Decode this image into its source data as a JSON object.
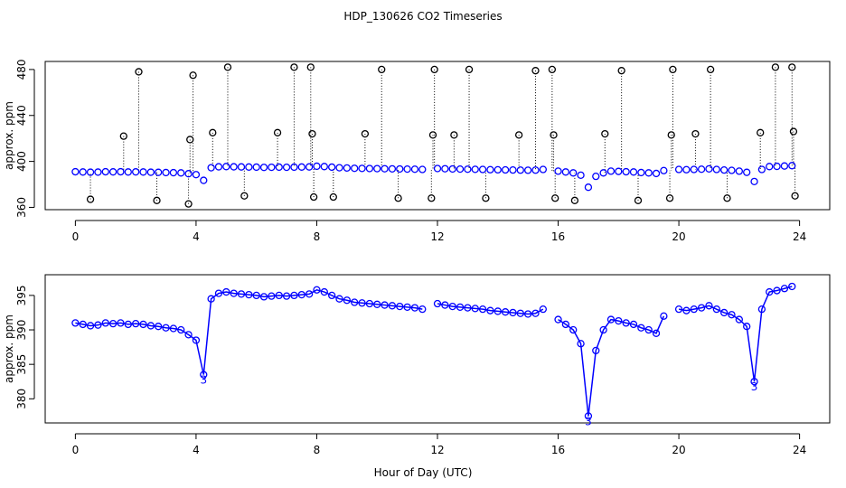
{
  "chart_data": [
    {
      "type": "scatter",
      "title": "HDP_130626  CO2 Timeseries",
      "y_label": "approx. ppm",
      "xlim": [
        -1,
        25
      ],
      "ylim": [
        358,
        487
      ],
      "xticks": [
        0,
        4,
        8,
        12,
        16,
        20,
        24
      ],
      "yticks": [
        360,
        400,
        440,
        480
      ],
      "series": [
        {
          "color": "#0000ff",
          "x": [
            0,
            0.25,
            0.5,
            0.75,
            1,
            1.25,
            1.5,
            1.75,
            2,
            2.25,
            2.5,
            2.75,
            3,
            3.25,
            3.5,
            3.75,
            4,
            4.25,
            4.5,
            4.75,
            5,
            5.25,
            5.5,
            5.75,
            6,
            6.25,
            6.5,
            6.75,
            7,
            7.25,
            7.5,
            7.75,
            8,
            8.25,
            8.5,
            8.75,
            9,
            9.25,
            9.5,
            9.75,
            10,
            10.25,
            10.5,
            10.75,
            11,
            11.25,
            11.5,
            11.75,
            12,
            12.25,
            12.5,
            12.75,
            13,
            13.25,
            13.5,
            13.75,
            14,
            14.25,
            14.5,
            14.75,
            15,
            15.25,
            15.5,
            15.75,
            16,
            16.25,
            16.5,
            16.75,
            17,
            17.25,
            17.5,
            17.75,
            18,
            18.25,
            18.5,
            18.75,
            19,
            19.25,
            19.5,
            19.75,
            20,
            20.25,
            20.5,
            20.75,
            21,
            21.25,
            21.5,
            21.75,
            22,
            22.25,
            22.5,
            22.75,
            23,
            23.25,
            23.5,
            23.75
          ],
          "values": [
            391,
            390.8,
            390.6,
            390.7,
            391,
            390.9,
            391,
            390.8,
            390.9,
            390.8,
            390.6,
            390.5,
            390.3,
            390.2,
            390,
            389.3,
            388.5,
            383.5,
            394.5,
            395.3,
            395.5,
            395.3,
            395.2,
            395.1,
            395,
            394.8,
            394.9,
            395,
            394.9,
            395,
            395.1,
            395.2,
            395.8,
            395.5,
            395,
            394.5,
            394.3,
            394,
            393.9,
            393.8,
            393.7,
            393.6,
            393.5,
            393.4,
            393.3,
            393.2,
            393,
            null,
            393.8,
            393.6,
            393.4,
            393.3,
            393.2,
            393.1,
            393,
            392.8,
            392.7,
            392.6,
            392.5,
            392.4,
            392.3,
            392.4,
            393,
            null,
            391.5,
            390.8,
            390,
            388,
            377.5,
            387,
            390,
            391.5,
            391.3,
            391,
            390.8,
            390.3,
            390,
            389.5,
            392,
            null,
            393,
            392.8,
            393,
            393.2,
            393.5,
            393,
            392.5,
            392.2,
            391.5,
            390.5,
            382.5,
            393,
            395.5,
            395.7,
            396,
            396.3
          ]
        },
        {
          "color": "#000000",
          "x": [
            0.5,
            1.6,
            2.1,
            2.7,
            3.75,
            3.8,
            3.9,
            4.55,
            5.05,
            5.6,
            6.7,
            7.25,
            7.8,
            7.85,
            7.9,
            8.55,
            9.6,
            10.15,
            10.7,
            11.8,
            11.85,
            11.9,
            12.55,
            13.05,
            13.6,
            14.7,
            15.25,
            15.8,
            15.85,
            15.9,
            16.55,
            17.55,
            18.1,
            18.65,
            19.7,
            19.75,
            19.8,
            20.55,
            21.05,
            21.6,
            22.7,
            23.2,
            23.75,
            23.8,
            23.85
          ],
          "values": [
            367,
            422,
            478,
            366,
            363,
            419,
            475,
            425,
            482,
            370,
            425,
            482,
            482,
            424,
            369,
            369,
            424,
            480,
            368,
            368,
            423,
            480,
            423,
            480,
            368,
            423,
            479,
            480,
            423,
            368,
            366,
            424,
            479,
            366,
            368,
            423,
            480,
            424,
            480,
            368,
            425,
            482,
            482,
            426,
            370
          ]
        }
      ]
    },
    {
      "type": "scatter",
      "x_label": "Hour of Day (UTC)",
      "y_label": "approx. ppm",
      "xlim": [
        -1,
        25
      ],
      "ylim": [
        376.5,
        398
      ],
      "xticks": [
        0,
        4,
        8,
        12,
        16,
        20,
        24
      ],
      "yticks": [
        380,
        385,
        390,
        395
      ],
      "series": [
        {
          "color": "#0000ff",
          "line": true,
          "x": [
            0,
            0.25,
            0.5,
            0.75,
            1,
            1.25,
            1.5,
            1.75,
            2,
            2.25,
            2.5,
            2.75,
            3,
            3.25,
            3.5,
            3.75,
            4,
            4.25,
            4.5,
            4.75,
            5,
            5.25,
            5.5,
            5.75,
            6,
            6.25,
            6.5,
            6.75,
            7,
            7.25,
            7.5,
            7.75,
            8,
            8.25,
            8.5,
            8.75,
            9,
            9.25,
            9.5,
            9.75,
            10,
            10.25,
            10.5,
            10.75,
            11,
            11.25,
            11.5,
            11.75,
            12,
            12.25,
            12.5,
            12.75,
            13,
            13.25,
            13.5,
            13.75,
            14,
            14.25,
            14.5,
            14.75,
            15,
            15.25,
            15.5,
            15.75,
            16,
            16.25,
            16.5,
            16.75,
            17,
            17.25,
            17.5,
            17.75,
            18,
            18.25,
            18.5,
            18.75,
            19,
            19.25,
            19.5,
            19.75,
            20,
            20.25,
            20.5,
            20.75,
            21,
            21.25,
            21.5,
            21.75,
            22,
            22.25,
            22.5,
            22.75,
            23,
            23.25,
            23.5,
            23.75
          ],
          "values": [
            391,
            390.8,
            390.6,
            390.7,
            391,
            390.9,
            391,
            390.8,
            390.9,
            390.8,
            390.6,
            390.5,
            390.3,
            390.2,
            390,
            389.3,
            388.5,
            383.5,
            394.5,
            395.3,
            395.5,
            395.3,
            395.2,
            395.1,
            395,
            394.8,
            394.9,
            395,
            394.9,
            395,
            395.1,
            395.2,
            395.8,
            395.5,
            395,
            394.5,
            394.3,
            394,
            393.9,
            393.8,
            393.7,
            393.6,
            393.5,
            393.4,
            393.3,
            393.2,
            393,
            null,
            393.8,
            393.6,
            393.4,
            393.3,
            393.2,
            393.1,
            393,
            392.8,
            392.7,
            392.6,
            392.5,
            392.4,
            392.3,
            392.4,
            393,
            null,
            391.5,
            390.8,
            390,
            388,
            377.5,
            387,
            390,
            391.5,
            391.3,
            391,
            390.8,
            390.3,
            390,
            389.5,
            392,
            null,
            393,
            392.8,
            393,
            393.2,
            393.5,
            393,
            392.5,
            392.2,
            391.5,
            390.5,
            382.5,
            393,
            395.5,
            395.7,
            396,
            396.3
          ]
        }
      ],
      "flags": {
        "color": "#0000ff",
        "x": [
          4.25,
          17,
          22.5
        ],
        "values": [
          383.5,
          377.5,
          382.5
        ],
        "labels": [
          "3",
          "3",
          "3"
        ]
      }
    }
  ]
}
